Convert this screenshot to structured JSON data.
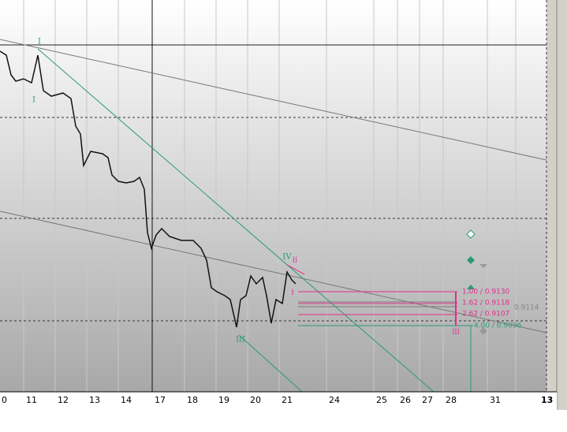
{
  "x_axis": {
    "labels": [
      "0",
      "11",
      "12",
      "13",
      "14",
      "17",
      "18",
      "19",
      "20",
      "21",
      "24",
      "25",
      "26",
      "27",
      "28",
      "31",
      "13"
    ]
  },
  "fib_levels": [
    "1.00 / 0.9130",
    "1.62 / 0.9118",
    "2.62 / 0.9107",
    "4.00 / 0.9096"
  ],
  "fib_extra": "0.9114",
  "wave_labels": {
    "top": "I",
    "low": "I",
    "third": "III",
    "fourth": "IV",
    "minor_i": "i",
    "minor_ii": "ii",
    "minor_iii": "iii"
  }
}
